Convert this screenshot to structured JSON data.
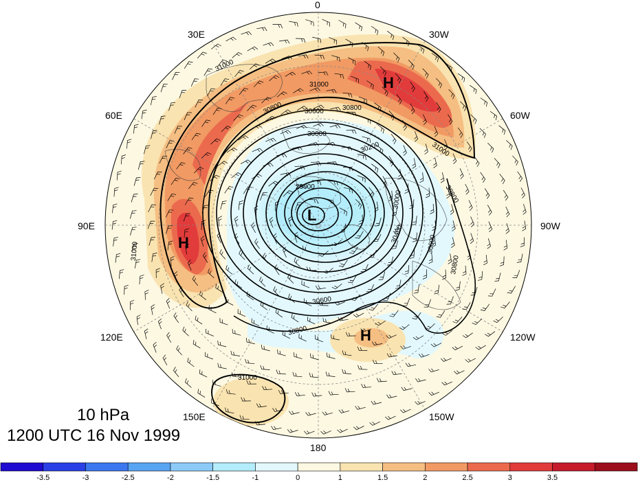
{
  "caption": {
    "level": "10 hPa",
    "time": "1200 UTC 16 Nov 1999"
  },
  "longitude_labels": [
    {
      "id": "0",
      "text": "0",
      "angle": 0
    },
    {
      "id": "30W",
      "text": "30W",
      "angle": 30
    },
    {
      "id": "60W",
      "text": "60W",
      "angle": 60
    },
    {
      "id": "90W",
      "text": "90W",
      "angle": 90
    },
    {
      "id": "120W",
      "text": "120W",
      "angle": 120
    },
    {
      "id": "150W",
      "text": "150W",
      "angle": 150
    },
    {
      "id": "180",
      "text": "180",
      "angle": 180
    },
    {
      "id": "150E",
      "text": "150E",
      "angle": 210
    },
    {
      "id": "120E",
      "text": "120E",
      "angle": 240
    },
    {
      "id": "90E",
      "text": "90E",
      "angle": 270
    },
    {
      "id": "60E",
      "text": "60E",
      "angle": 300
    },
    {
      "id": "30E",
      "text": "30E",
      "angle": 330
    }
  ],
  "pressure_centers": [
    {
      "id": "low-polar",
      "text": "L"
    },
    {
      "id": "high-atlantic",
      "text": "H"
    },
    {
      "id": "high-asia",
      "text": "H"
    },
    {
      "id": "high-pacific",
      "text": "H"
    }
  ],
  "contour_labels": [
    {
      "id": "c1",
      "text": "31000"
    },
    {
      "id": "c2",
      "text": "31000"
    },
    {
      "id": "c3",
      "text": "31000"
    },
    {
      "id": "c4",
      "text": "31000"
    },
    {
      "id": "c5",
      "text": "31000"
    },
    {
      "id": "c6",
      "text": "30800"
    },
    {
      "id": "c7",
      "text": "30800"
    },
    {
      "id": "c8",
      "text": "30800"
    },
    {
      "id": "c9",
      "text": "30800"
    },
    {
      "id": "c10",
      "text": "30800"
    },
    {
      "id": "c11",
      "text": "30600"
    },
    {
      "id": "c12",
      "text": "30600"
    },
    {
      "id": "c13",
      "text": "30600"
    },
    {
      "id": "c14",
      "text": "30200"
    },
    {
      "id": "c15",
      "text": "30400"
    },
    {
      "id": "c16",
      "text": "30000"
    },
    {
      "id": "c17",
      "text": "29000"
    },
    {
      "id": "c18",
      "text": "30000"
    }
  ],
  "colorbar": {
    "colors": [
      "#1e0ad0",
      "#2a3fe6",
      "#3b77ee",
      "#57a4f2",
      "#8ccaf8",
      "#b3ecfb",
      "#e2f8fd",
      "#fcf8e2",
      "#f9e3b0",
      "#f5be82",
      "#f19a63",
      "#eb6a4e",
      "#e23b3b",
      "#c51b2b",
      "#9c0e1c"
    ],
    "labels": [
      "-3.5",
      "-3",
      "-2.5",
      "-2",
      "-1.5",
      "-1",
      "0",
      "1",
      "1.5",
      "2",
      "2.5",
      "3",
      "3.5"
    ]
  }
}
